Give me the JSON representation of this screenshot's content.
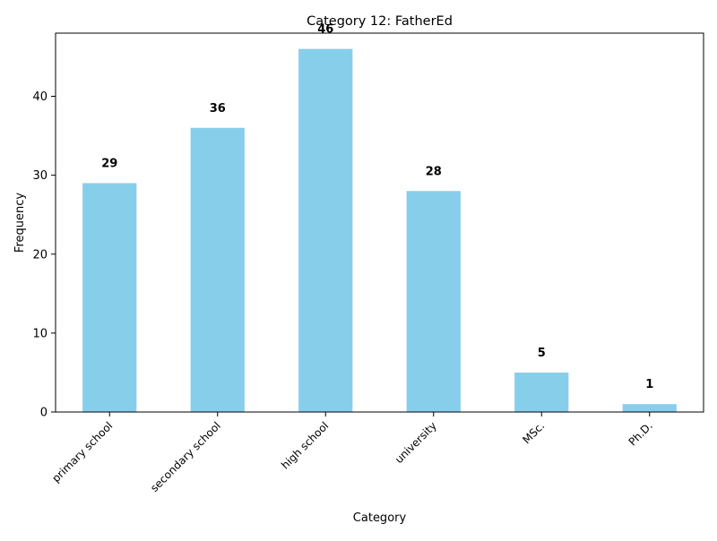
{
  "chart_data": {
    "type": "bar",
    "title": "Category 12: FatherEd",
    "xlabel": "Category",
    "ylabel": "Frequency",
    "categories": [
      "primary school",
      "secondary school",
      "high school",
      "university",
      "MSc.",
      "Ph.D."
    ],
    "values": [
      29,
      36,
      46,
      28,
      5,
      1
    ],
    "ylim": [
      0,
      48
    ],
    "yticks": [
      0,
      10,
      20,
      30,
      40
    ],
    "bar_color": "#87ceeb",
    "grid": false,
    "legend": "none",
    "data_labels": true
  }
}
